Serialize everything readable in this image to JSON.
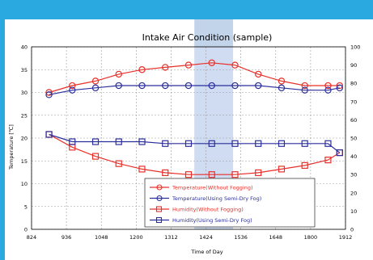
{
  "chart_data": {
    "type": "line",
    "title": "Intake Air Condition (sample)",
    "xlabel": "Time of Day",
    "ylabel_left": "Temperature [℃]",
    "ylabel_right": "",
    "x_ticks": [
      "824",
      "936",
      "1048",
      "1200",
      "1312",
      "1424",
      "1536",
      "1648",
      "1800",
      "1912"
    ],
    "y_left_ticks": [
      "0",
      "5",
      "10",
      "15",
      "20",
      "25",
      "30",
      "35",
      "40"
    ],
    "y_right_ticks": [
      "0",
      "10",
      "20",
      "30",
      "40",
      "50",
      "60",
      "70",
      "80",
      "90",
      "100"
    ],
    "ylim_left": [
      0,
      40
    ],
    "ylim_right": [
      0,
      100
    ],
    "grid": true,
    "highlight_band_x": [
      "1400",
      "1520"
    ],
    "legend_position": "bottom-center",
    "series": [
      {
        "name": "Temperature(Without Fogging)",
        "axis": "left",
        "color": "#e8302a",
        "marker": "circle",
        "x": [
          "900",
          "948",
          "1036",
          "1124",
          "1212",
          "1300",
          "1348",
          "1436",
          "1524",
          "1612",
          "1700",
          "1748",
          "1836",
          "1900"
        ],
        "values": [
          30,
          31.5,
          32.5,
          34,
          35,
          35.5,
          36,
          36.5,
          36,
          34,
          32.5,
          31.5,
          31.5,
          31.5
        ]
      },
      {
        "name": "Temperature(Using Semi-Dry Fog)",
        "axis": "left",
        "color": "#2b2f9c",
        "marker": "circle",
        "x": [
          "900",
          "948",
          "1036",
          "1124",
          "1212",
          "1300",
          "1348",
          "1436",
          "1524",
          "1612",
          "1700",
          "1748",
          "1836",
          "1900"
        ],
        "values": [
          29.5,
          30.5,
          31,
          31.5,
          31.5,
          31.5,
          31.5,
          31.5,
          31.5,
          31.5,
          31,
          30.5,
          30.5,
          31
        ]
      },
      {
        "name": "Humidity(Without Fogging)",
        "axis": "right",
        "color": "#e8302a",
        "marker": "square",
        "x": [
          "900",
          "948",
          "1036",
          "1124",
          "1212",
          "1300",
          "1348",
          "1436",
          "1524",
          "1612",
          "1700",
          "1748",
          "1836",
          "1900"
        ],
        "values": [
          52,
          45,
          40,
          36,
          33,
          31,
          30,
          30,
          30,
          31,
          33,
          35,
          38,
          42
        ]
      },
      {
        "name": "Humidity(Using Semi-Dry Fog)",
        "axis": "right",
        "color": "#2b2f9c",
        "marker": "square",
        "x": [
          "900",
          "948",
          "1036",
          "1124",
          "1212",
          "1300",
          "1348",
          "1436",
          "1524",
          "1612",
          "1700",
          "1748",
          "1836",
          "1900"
        ],
        "values": [
          52,
          48,
          48,
          48,
          48,
          47,
          47,
          47,
          47,
          47,
          47,
          47,
          47,
          42
        ]
      }
    ]
  }
}
